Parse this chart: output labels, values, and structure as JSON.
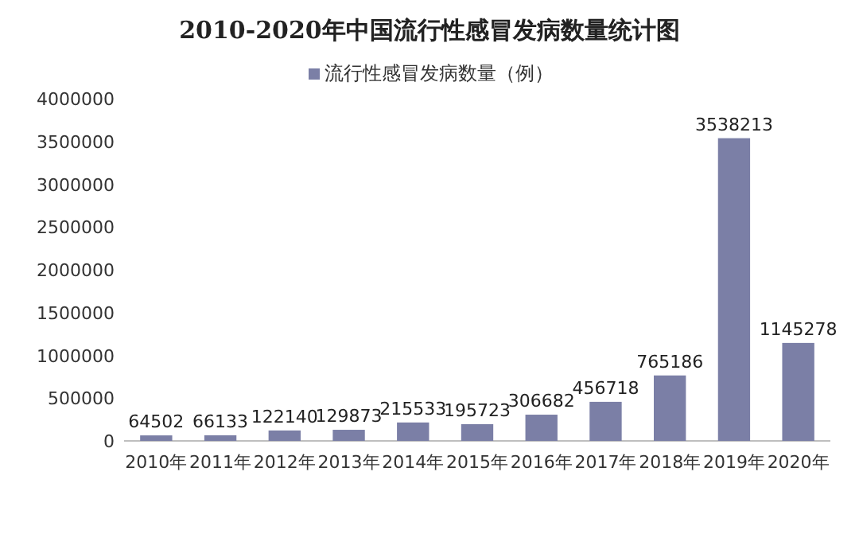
{
  "chart_data": {
    "type": "bar",
    "title": "2010-2020年中国流行性感冒发病数量统计图",
    "categories": [
      "2010年",
      "2011年",
      "2012年",
      "2013年",
      "2014年",
      "2015年",
      "2016年",
      "2017年",
      "2018年",
      "2019年",
      "2020年"
    ],
    "series": [
      {
        "name": "流行性感冒发病数量（例）",
        "color": "#7b7fa6",
        "values": [
          64502,
          66133,
          122140,
          129873,
          215533,
          195723,
          306682,
          456718,
          765186,
          3538213,
          1145278
        ]
      }
    ],
    "ylim": [
      0,
      4000000
    ],
    "yticks": [
      0,
      500000,
      1000000,
      1500000,
      2000000,
      2500000,
      3000000,
      3500000,
      4000000
    ],
    "data_labels": true,
    "legend": "top"
  }
}
